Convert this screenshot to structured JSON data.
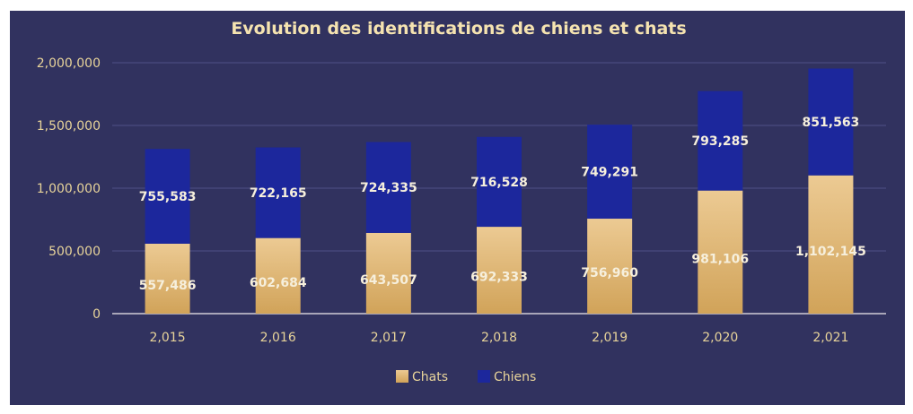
{
  "chart_data": {
    "type": "bar",
    "stacked": true,
    "title": "Evolution des identifications de chiens et chats",
    "xlabel": "",
    "ylabel": "",
    "categories": [
      "2,015",
      "2,016",
      "2,017",
      "2,018",
      "2,019",
      "2,020",
      "2,021"
    ],
    "series": [
      {
        "name": "Chats",
        "color": "#e4b66e",
        "values": [
          557486,
          602684,
          643507,
          692333,
          756960,
          981106,
          1102145
        ],
        "labels": [
          "557,486",
          "602,684",
          "643,507",
          "692,333",
          "756,960",
          "981,106",
          "1,102,145"
        ]
      },
      {
        "name": "Chiens",
        "color": "#1c279c",
        "values": [
          755583,
          722165,
          724335,
          716528,
          749291,
          793285,
          851563
        ],
        "labels": [
          "755,583",
          "722,165",
          "724,335",
          "716,528",
          "749,291",
          "793,285",
          "851,563"
        ]
      }
    ],
    "ylim": [
      0,
      2000000
    ],
    "yticks": [
      "0",
      "500,000",
      "1,000,000",
      "1,500,000",
      "2,000,000"
    ],
    "grid": true,
    "legend": "bottom",
    "background": "#31325f"
  }
}
